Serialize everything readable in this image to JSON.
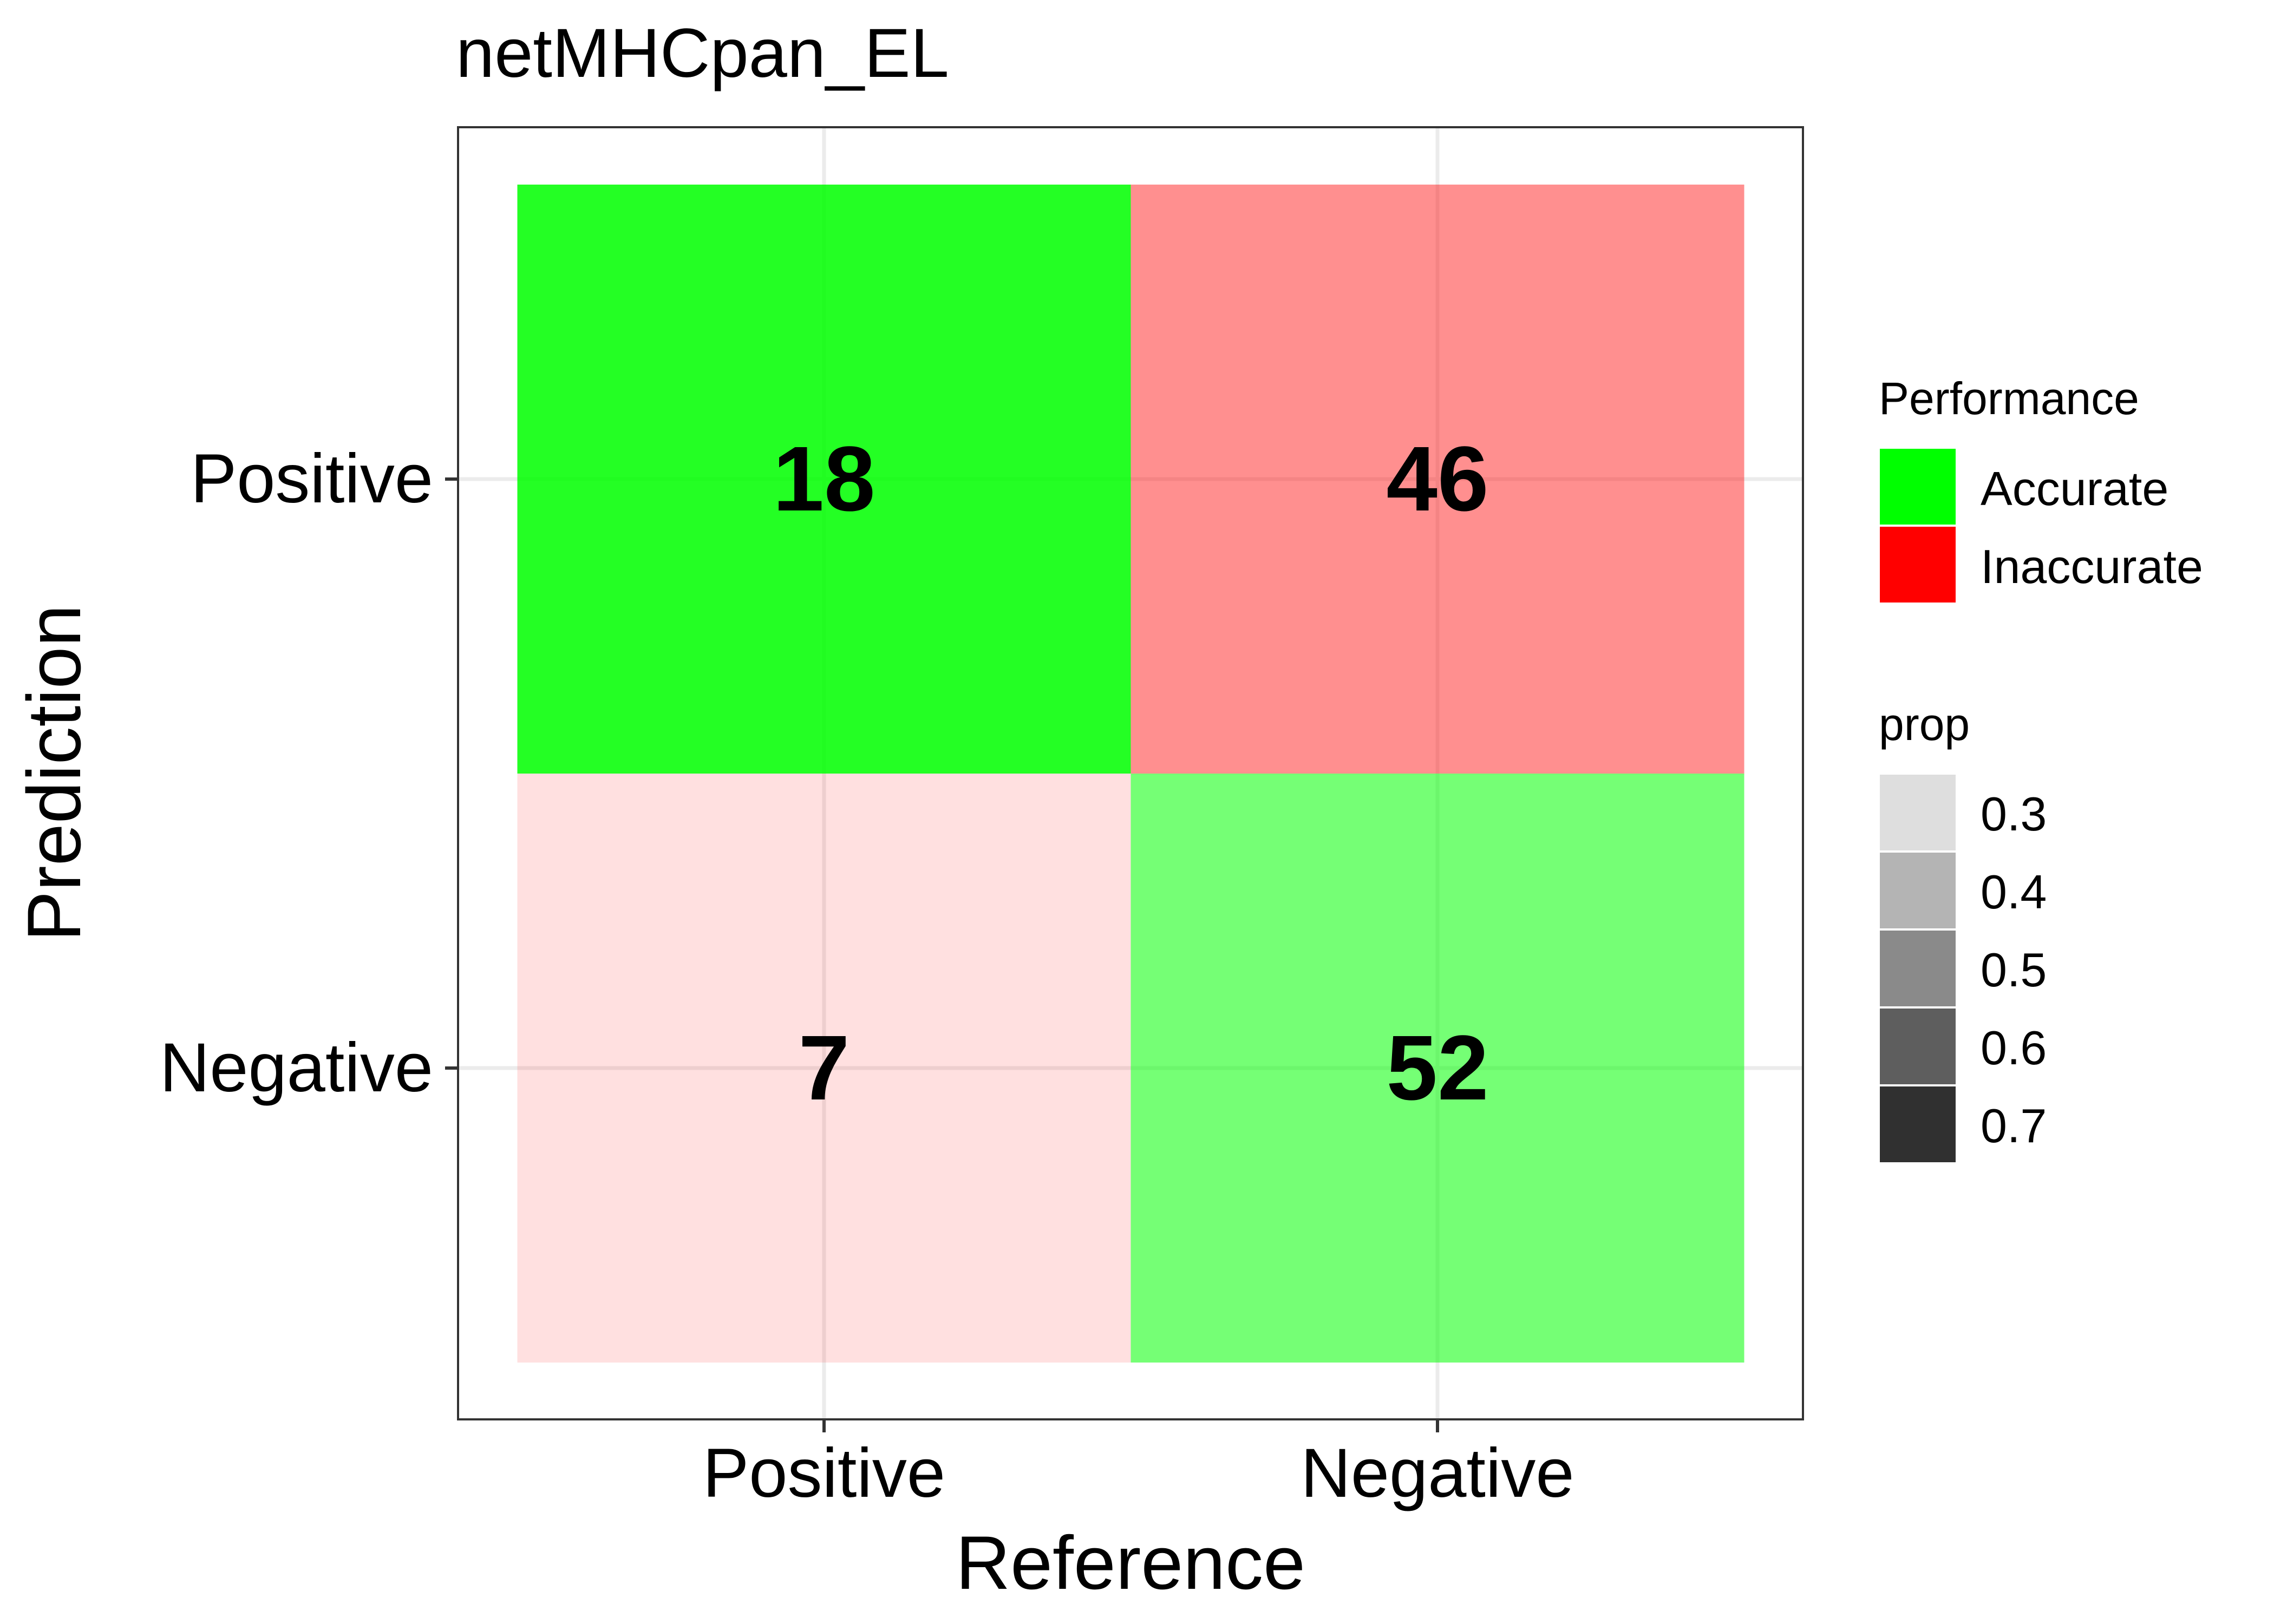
{
  "chart_data": {
    "type": "heatmap",
    "title": "netMHCpan_EL",
    "xlabel": "Reference",
    "ylabel": "Prediction",
    "x_categories": [
      "Positive",
      "Negative"
    ],
    "y_categories": [
      "Positive",
      "Negative"
    ],
    "grid": true,
    "legend_position": "right",
    "cells": [
      {
        "reference": "Positive",
        "prediction": "Positive",
        "count": 18,
        "performance": "Accurate",
        "prop": 0.72
      },
      {
        "reference": "Negative",
        "prediction": "Positive",
        "count": 46,
        "performance": "Inaccurate",
        "prop": 0.47
      },
      {
        "reference": "Positive",
        "prediction": "Negative",
        "count": 7,
        "performance": "Inaccurate",
        "prop": 0.28
      },
      {
        "reference": "Negative",
        "prediction": "Negative",
        "count": 52,
        "performance": "Accurate",
        "prop": 0.53
      }
    ],
    "legends": {
      "performance": {
        "title": "Performance",
        "items": [
          {
            "label": "Accurate",
            "color": "#00ff00"
          },
          {
            "label": "Inaccurate",
            "color": "#ff0000"
          }
        ]
      },
      "prop": {
        "title": "prop",
        "items": [
          {
            "label": "0.3",
            "color": "#dedede"
          },
          {
            "label": "0.4",
            "color": "#b4b4b4"
          },
          {
            "label": "0.5",
            "color": "#8a8a8a"
          },
          {
            "label": "0.6",
            "color": "#5e5e5e"
          },
          {
            "label": "0.7",
            "color": "#303030"
          }
        ]
      }
    }
  }
}
